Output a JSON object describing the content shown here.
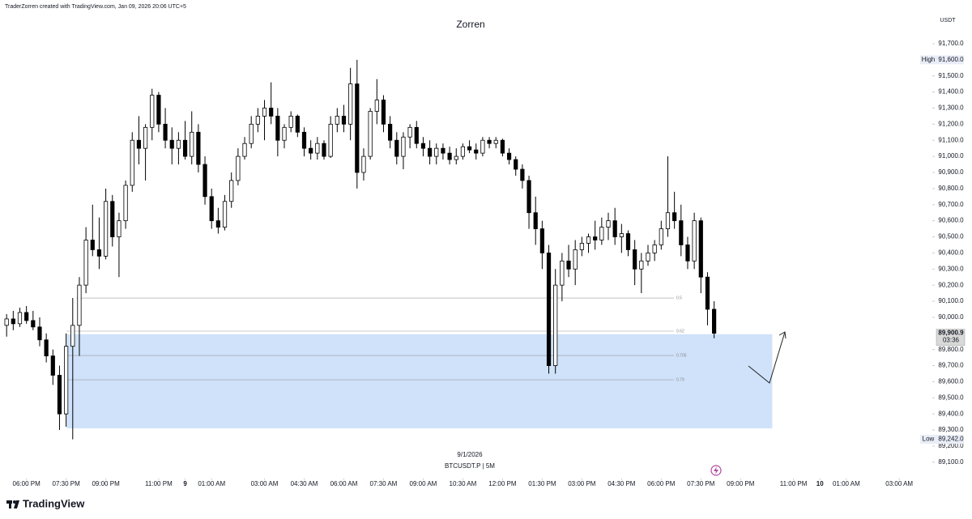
{
  "header": {
    "credit": "TraderZorren created with TradingView.com, Jan 09, 2026 20:06 UTC+5"
  },
  "footer": {
    "brand": "TradingView"
  },
  "chart_data": {
    "type": "candlestick",
    "title": "Zorren",
    "date_label": "9/1/2026",
    "symbol_label": "BTCUSDT.P | 5M",
    "currency": "USDT",
    "up_color": "#ffffff",
    "down_color": "#000000",
    "wick_color": "#000000",
    "candles": {
      "open": [
        89950,
        89990,
        89960,
        90030,
        89980,
        89940,
        89860,
        89760,
        89640,
        89400,
        89820,
        89950,
        90200,
        90480,
        90420,
        90380,
        90720,
        90500,
        90600,
        90820,
        91100,
        91050,
        91180,
        91380,
        91200,
        91100,
        91050,
        91100,
        91000,
        91150,
        90950,
        90750,
        90600,
        90560,
        90720,
        90850,
        91000,
        91080,
        91200,
        91250,
        91300,
        91250,
        91100,
        91180,
        91250,
        91150,
        91050,
        91020,
        91080,
        91000,
        91200,
        91250,
        91200,
        91450,
        90900,
        91000,
        91280,
        91350,
        91200,
        91100,
        91000,
        91120,
        91180,
        91080,
        91050,
        91000,
        91050,
        91020,
        90980,
        91000,
        91060,
        91040,
        91020,
        91100,
        91080,
        91100,
        91020,
        90980,
        90920,
        90850,
        90650,
        90550,
        90400,
        89700,
        90200,
        90350,
        90300,
        90420,
        90460,
        90500,
        90480,
        90560,
        90600,
        90500,
        90520,
        90420,
        90300,
        90350,
        90400,
        90450,
        90550,
        90650,
        90600,
        90450,
        90350,
        90600,
        90250,
        90050
      ],
      "high": [
        90020,
        90040,
        90060,
        90070,
        90040,
        90000,
        89900,
        89800,
        89700,
        89900,
        90120,
        90250,
        90560,
        90700,
        90620,
        90800,
        90760,
        90650,
        90850,
        91150,
        91250,
        91200,
        91420,
        91400,
        91300,
        91180,
        91150,
        91220,
        91280,
        91200,
        91000,
        90800,
        90680,
        90760,
        90900,
        91050,
        91120,
        91250,
        91300,
        91350,
        91460,
        91300,
        91200,
        91280,
        91260,
        91180,
        91100,
        91120,
        91100,
        91250,
        91300,
        91320,
        91550,
        91600,
        91050,
        91300,
        91480,
        91380,
        91250,
        91150,
        91150,
        91200,
        91220,
        91120,
        91100,
        91080,
        91080,
        91060,
        91050,
        91080,
        91100,
        91080,
        91120,
        91120,
        91120,
        91110,
        91050,
        91000,
        90950,
        90880,
        90750,
        90600,
        90450,
        90300,
        90400,
        90450,
        90480,
        90500,
        90520,
        90600,
        90620,
        90650,
        90680,
        90580,
        90540,
        90480,
        90400,
        90450,
        90480,
        90600,
        91000,
        90780,
        90700,
        90500,
        90650,
        90620,
        90280,
        90100
      ],
      "low": [
        89880,
        89920,
        89940,
        89960,
        89920,
        89820,
        89720,
        89580,
        89300,
        89320,
        89242,
        89760,
        90150,
        90380,
        90300,
        90360,
        90440,
        90250,
        90550,
        90780,
        90950,
        90850,
        91100,
        91150,
        91050,
        90950,
        90950,
        90980,
        90950,
        90900,
        90700,
        90550,
        90520,
        90540,
        90680,
        90820,
        90980,
        91050,
        91150,
        91100,
        91200,
        91000,
        91050,
        91150,
        91120,
        91000,
        90980,
        90980,
        90980,
        90990,
        91150,
        91150,
        91100,
        90800,
        90850,
        90980,
        91200,
        91150,
        91050,
        90950,
        90920,
        91050,
        91050,
        91000,
        90950,
        90950,
        90980,
        90950,
        90950,
        90980,
        91020,
        90980,
        91000,
        91050,
        91050,
        91000,
        90950,
        90880,
        90800,
        90550,
        90450,
        90300,
        89650,
        89650,
        90100,
        90250,
        90200,
        90380,
        90400,
        90420,
        90450,
        90480,
        90450,
        90400,
        90380,
        90200,
        90150,
        90320,
        90350,
        90420,
        90500,
        90550,
        90380,
        90300,
        90300,
        90150,
        89950,
        89870
      ],
      "close": [
        89990,
        89960,
        90030,
        89980,
        89940,
        89860,
        89760,
        89640,
        89400,
        89820,
        89950,
        90200,
        90480,
        90420,
        90380,
        90720,
        90500,
        90600,
        90820,
        91100,
        91050,
        91180,
        91380,
        91200,
        91100,
        91050,
        91100,
        91000,
        91150,
        90950,
        90750,
        90600,
        90560,
        90720,
        90850,
        91000,
        91080,
        91200,
        91250,
        91300,
        91250,
        91100,
        91180,
        91250,
        91150,
        91050,
        91020,
        91080,
        91000,
        91200,
        91250,
        91200,
        91450,
        90900,
        91000,
        91280,
        91350,
        91200,
        91100,
        91000,
        91120,
        91180,
        91080,
        91050,
        91000,
        91050,
        91020,
        90980,
        91000,
        91060,
        91040,
        91020,
        91100,
        91080,
        91100,
        91020,
        90980,
        90920,
        90850,
        90650,
        90550,
        90400,
        89700,
        90200,
        90350,
        90300,
        90420,
        90460,
        90500,
        90480,
        90560,
        90600,
        90500,
        90520,
        90420,
        90300,
        90350,
        90400,
        90450,
        90550,
        90650,
        90600,
        90450,
        90350,
        90600,
        90250,
        90050,
        89900.9
      ]
    },
    "xlim": [
      -1,
      140
    ],
    "xticks": [
      {
        "value": 3,
        "label": "06:00 PM"
      },
      {
        "value": 9,
        "label": "07:30 PM"
      },
      {
        "value": 15,
        "label": "09:00 PM"
      },
      {
        "value": 23,
        "label": "11:00 PM"
      },
      {
        "value": 27,
        "label": "9"
      },
      {
        "value": 31,
        "label": "01:00 AM"
      },
      {
        "value": 39,
        "label": "03:00 AM"
      },
      {
        "value": 45,
        "label": "04:30 AM"
      },
      {
        "value": 51,
        "label": "06:00 AM"
      },
      {
        "value": 57,
        "label": "07:30 AM"
      },
      {
        "value": 63,
        "label": "09:00 AM"
      },
      {
        "value": 69,
        "label": "10:30 AM"
      },
      {
        "value": 75,
        "label": "12:00 PM"
      },
      {
        "value": 81,
        "label": "01:30 PM"
      },
      {
        "value": 87,
        "label": "03:00 PM"
      },
      {
        "value": 93,
        "label": "04:30 PM"
      },
      {
        "value": 99,
        "label": "06:00 PM"
      },
      {
        "value": 105,
        "label": "07:30 PM"
      },
      {
        "value": 111,
        "label": "09:00 PM"
      },
      {
        "value": 119,
        "label": "11:00 PM"
      },
      {
        "value": 123,
        "label": "10"
      },
      {
        "value": 127,
        "label": "01:00 AM"
      },
      {
        "value": 135,
        "label": "03:00 AM"
      }
    ],
    "ylim": [
      89000,
      91900
    ],
    "yticks": [
      {
        "value": 89100,
        "label": "89,100.0"
      },
      {
        "value": 89200,
        "label": "89,200.0"
      },
      {
        "value": 89300,
        "label": "89,300.0"
      },
      {
        "value": 89400,
        "label": "89,400.0"
      },
      {
        "value": 89500,
        "label": "89,500.0"
      },
      {
        "value": 89600,
        "label": "89,600.0"
      },
      {
        "value": 89700,
        "label": "89,700.0"
      },
      {
        "value": 89800,
        "label": "89,800.0"
      },
      {
        "value": 90000,
        "label": "90,000.0"
      },
      {
        "value": 90100,
        "label": "90,100.0"
      },
      {
        "value": 90200,
        "label": "90,200.0"
      },
      {
        "value": 90300,
        "label": "90,300.0"
      },
      {
        "value": 90400,
        "label": "90,400.0"
      },
      {
        "value": 90500,
        "label": "90,500.0"
      },
      {
        "value": 90600,
        "label": "90,600.0"
      },
      {
        "value": 90700,
        "label": "90,700.0"
      },
      {
        "value": 90800,
        "label": "90,800.0"
      },
      {
        "value": 90900,
        "label": "90,900.0"
      },
      {
        "value": 91000,
        "label": "91,000.0"
      },
      {
        "value": 91100,
        "label": "91,100.0"
      },
      {
        "value": 91200,
        "label": "91,200.0"
      },
      {
        "value": 91300,
        "label": "91,300.0"
      },
      {
        "value": 91400,
        "label": "91,400.0"
      },
      {
        "value": 91500,
        "label": "91,500.0"
      },
      {
        "value": 91700,
        "label": "91,700.0"
      }
    ],
    "high_marker": {
      "label": "High",
      "price": {
        "value": 91600,
        "label": "91,600.0"
      }
    },
    "low_marker": {
      "label": "Low",
      "price": {
        "value": 89242,
        "label": "89,242.0"
      }
    },
    "last_price": {
      "price": {
        "value": 89900.9,
        "label": "89,900.9"
      },
      "countdown": "03:36"
    },
    "levels": [
      {
        "label": "0.5",
        "value": 90120
      },
      {
        "label": "0.62",
        "value": 89914
      },
      {
        "label": "0.705",
        "value": 89763
      },
      {
        "label": "0.79",
        "value": 89612
      }
    ],
    "zone": {
      "top": 89895,
      "bottom": 89310,
      "x_start": 9.1,
      "x_end": 115.8,
      "color": "#cfe2fa"
    }
  }
}
